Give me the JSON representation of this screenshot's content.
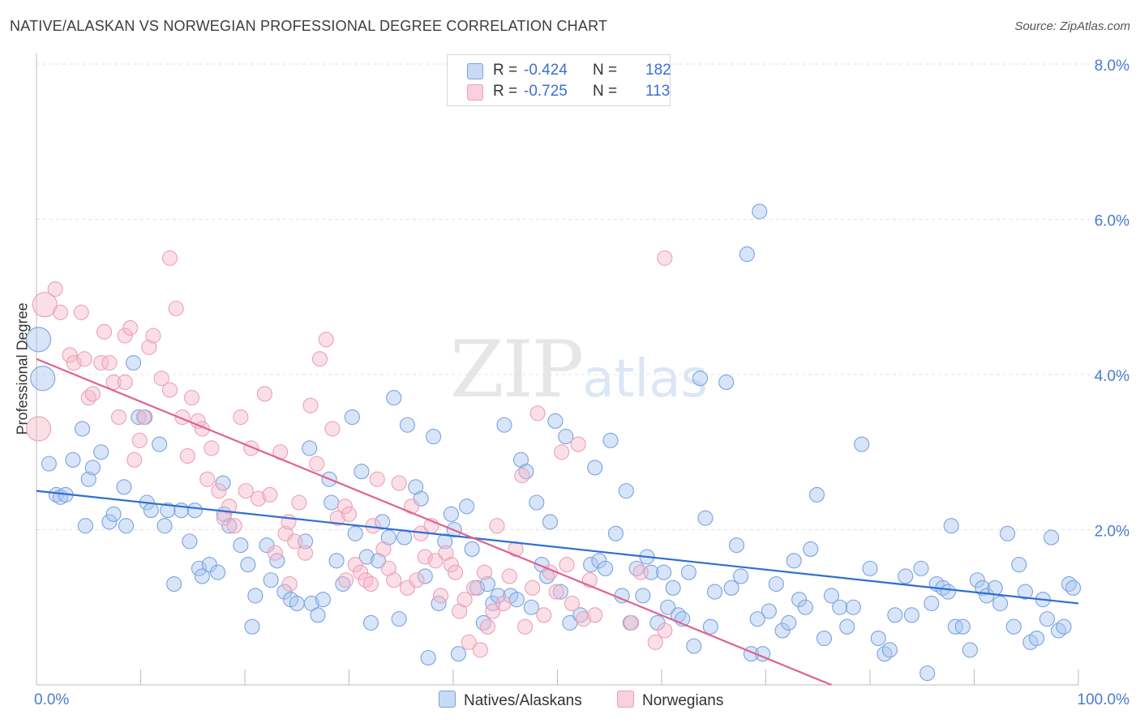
{
  "header": {
    "title": "NATIVE/ALASKAN VS NORWEGIAN PROFESSIONAL DEGREE CORRELATION CHART",
    "source": "Source: ZipAtlas.com"
  },
  "watermark": {
    "zip": "ZIP",
    "atlas": "atlas"
  },
  "legend": {
    "r_label": "R =",
    "n_label": "N =",
    "rows": [
      {
        "r": "-0.424",
        "n": "182",
        "color": "#a9c6f0"
      },
      {
        "r": "-0.725",
        "n": "113",
        "color": "#f6b8ca"
      }
    ]
  },
  "bottom_legend": [
    {
      "label": "Natives/Alaskans",
      "color": "#a9c6f0"
    },
    {
      "label": "Norwegians",
      "color": "#f6b8ca"
    }
  ],
  "chart_data": {
    "type": "scatter",
    "title": "NATIVE/ALASKAN VS NORWEGIAN PROFESSIONAL DEGREE CORRELATION CHART",
    "xlabel": "",
    "ylabel": "Professional Degree",
    "xlim": [
      0,
      100
    ],
    "ylim": [
      0,
      8.0
    ],
    "x_tick_labels": [
      "0.0%",
      "100.0%"
    ],
    "y_ticks": [
      2.0,
      4.0,
      6.0,
      8.0
    ],
    "y_tick_labels": [
      "2.0%",
      "4.0%",
      "6.0%",
      "8.0%"
    ],
    "grid": true,
    "colors": {
      "blue": "#4a7bd0",
      "blue_fill": "#a9c6f0",
      "blue_line": "#2f6fd0",
      "pink": "#e8739a",
      "pink_fill": "#f6b8ca",
      "pink_line": "#e0628f"
    },
    "series": [
      {
        "name": "Natives/Alaskans",
        "regression": {
          "x": [
            0,
            100
          ],
          "y": [
            2.5,
            1.05
          ]
        },
        "points": [
          [
            0.2,
            4.45
          ],
          [
            0.6,
            3.95
          ],
          [
            1.2,
            2.85
          ],
          [
            1.9,
            2.45
          ],
          [
            2.3,
            2.42
          ],
          [
            3.5,
            2.9
          ],
          [
            4.4,
            3.3
          ],
          [
            4.7,
            2.05
          ],
          [
            5.0,
            2.65
          ],
          [
            5.4,
            2.8
          ],
          [
            6.2,
            3.0
          ],
          [
            7.0,
            2.1
          ],
          [
            7.4,
            2.2
          ],
          [
            8.4,
            2.55
          ],
          [
            9.3,
            4.15
          ],
          [
            9.8,
            3.45
          ],
          [
            10.6,
            2.35
          ],
          [
            11.0,
            2.25
          ],
          [
            11.8,
            3.1
          ],
          [
            12.3,
            2.05
          ],
          [
            13.2,
            1.3
          ],
          [
            13.9,
            2.25
          ],
          [
            14.7,
            1.85
          ],
          [
            15.2,
            2.25
          ],
          [
            15.6,
            1.5
          ],
          [
            15.9,
            1.4
          ],
          [
            16.6,
            1.55
          ],
          [
            17.4,
            1.45
          ],
          [
            17.9,
            2.6
          ],
          [
            18.5,
            2.05
          ],
          [
            19.6,
            1.8
          ],
          [
            20.3,
            1.55
          ],
          [
            20.7,
            0.75
          ],
          [
            21.0,
            1.15
          ],
          [
            22.1,
            1.8
          ],
          [
            22.5,
            1.35
          ],
          [
            23.1,
            1.6
          ],
          [
            23.8,
            1.2
          ],
          [
            24.4,
            1.1
          ],
          [
            25.0,
            1.05
          ],
          [
            25.8,
            1.85
          ],
          [
            26.4,
            1.05
          ],
          [
            27.0,
            0.9
          ],
          [
            27.5,
            1.1
          ],
          [
            28.3,
            2.35
          ],
          [
            28.8,
            1.6
          ],
          [
            29.4,
            1.3
          ],
          [
            30.3,
            3.45
          ],
          [
            30.6,
            1.95
          ],
          [
            31.2,
            2.75
          ],
          [
            31.7,
            1.65
          ],
          [
            32.1,
            0.8
          ],
          [
            32.8,
            1.6
          ],
          [
            33.2,
            2.1
          ],
          [
            33.8,
            1.9
          ],
          [
            34.3,
            3.7
          ],
          [
            34.8,
            0.85
          ],
          [
            35.3,
            1.9
          ],
          [
            35.6,
            3.35
          ],
          [
            36.4,
            2.55
          ],
          [
            36.9,
            2.4
          ],
          [
            37.3,
            1.4
          ],
          [
            37.6,
            0.35
          ],
          [
            38.1,
            3.2
          ],
          [
            38.6,
            1.05
          ],
          [
            39.2,
            1.85
          ],
          [
            39.8,
            2.2
          ],
          [
            40.1,
            2.0
          ],
          [
            40.5,
            0.4
          ],
          [
            41.3,
            2.3
          ],
          [
            41.8,
            1.75
          ],
          [
            42.3,
            1.25
          ],
          [
            42.9,
            0.8
          ],
          [
            43.3,
            1.3
          ],
          [
            43.8,
            1.05
          ],
          [
            44.3,
            1.15
          ],
          [
            44.9,
            3.35
          ],
          [
            45.5,
            1.15
          ],
          [
            46.1,
            1.1
          ],
          [
            46.5,
            2.9
          ],
          [
            47.0,
            2.75
          ],
          [
            47.5,
            1.0
          ],
          [
            48.0,
            2.35
          ],
          [
            48.5,
            1.55
          ],
          [
            49.0,
            1.4
          ],
          [
            49.3,
            2.1
          ],
          [
            49.8,
            3.4
          ],
          [
            50.3,
            1.2
          ],
          [
            50.8,
            3.2
          ],
          [
            51.2,
            0.8
          ],
          [
            52.2,
            0.9
          ],
          [
            53.2,
            1.55
          ],
          [
            53.6,
            2.8
          ],
          [
            54.0,
            1.6
          ],
          [
            54.6,
            1.5
          ],
          [
            55.1,
            3.15
          ],
          [
            55.6,
            1.95
          ],
          [
            56.2,
            1.15
          ],
          [
            56.6,
            2.5
          ],
          [
            57.0,
            0.8
          ],
          [
            57.6,
            1.5
          ],
          [
            58.2,
            1.15
          ],
          [
            58.6,
            1.65
          ],
          [
            59.0,
            1.45
          ],
          [
            59.6,
            0.8
          ],
          [
            60.2,
            1.45
          ],
          [
            60.6,
            1.0
          ],
          [
            61.1,
            1.25
          ],
          [
            61.6,
            0.9
          ],
          [
            62.0,
            0.85
          ],
          [
            62.6,
            1.45
          ],
          [
            63.1,
            0.5
          ],
          [
            63.7,
            3.95
          ],
          [
            64.2,
            2.15
          ],
          [
            64.7,
            0.75
          ],
          [
            65.1,
            1.2
          ],
          [
            66.2,
            3.9
          ],
          [
            66.7,
            1.25
          ],
          [
            67.2,
            1.8
          ],
          [
            67.6,
            1.4
          ],
          [
            68.2,
            5.55
          ],
          [
            68.6,
            0.4
          ],
          [
            69.2,
            0.85
          ],
          [
            69.7,
            0.4
          ],
          [
            70.3,
            0.95
          ],
          [
            71.0,
            1.3
          ],
          [
            71.6,
            0.7
          ],
          [
            72.2,
            0.8
          ],
          [
            72.7,
            1.6
          ],
          [
            73.2,
            1.1
          ],
          [
            73.8,
            1.0
          ],
          [
            74.3,
            1.75
          ],
          [
            74.9,
            2.45
          ],
          [
            75.6,
            0.6
          ],
          [
            76.3,
            1.15
          ],
          [
            77.1,
            1.0
          ],
          [
            77.8,
            0.75
          ],
          [
            78.4,
            1.0
          ],
          [
            79.2,
            3.1
          ],
          [
            80.0,
            1.5
          ],
          [
            80.8,
            0.6
          ],
          [
            81.4,
            0.4
          ],
          [
            81.9,
            0.45
          ],
          [
            82.4,
            0.9
          ],
          [
            83.4,
            1.4
          ],
          [
            84.0,
            0.9
          ],
          [
            84.9,
            1.5
          ],
          [
            85.5,
            0.15
          ],
          [
            85.9,
            1.05
          ],
          [
            86.4,
            1.3
          ],
          [
            87.0,
            1.25
          ],
          [
            87.5,
            1.2
          ],
          [
            87.8,
            2.05
          ],
          [
            88.2,
            0.75
          ],
          [
            88.9,
            0.75
          ],
          [
            89.6,
            0.45
          ],
          [
            90.3,
            1.35
          ],
          [
            90.8,
            1.25
          ],
          [
            91.2,
            1.15
          ],
          [
            92.0,
            1.25
          ],
          [
            92.5,
            1.05
          ],
          [
            93.2,
            1.95
          ],
          [
            93.8,
            0.75
          ],
          [
            94.3,
            1.55
          ],
          [
            94.9,
            1.2
          ],
          [
            95.4,
            0.55
          ],
          [
            96.0,
            0.6
          ],
          [
            96.6,
            1.1
          ],
          [
            97.0,
            0.85
          ],
          [
            97.4,
            1.9
          ],
          [
            98.1,
            0.7
          ],
          [
            98.6,
            0.75
          ],
          [
            99.1,
            1.3
          ],
          [
            99.5,
            1.25
          ],
          [
            2.8,
            2.45
          ],
          [
            8.6,
            2.05
          ],
          [
            10.4,
            3.45
          ],
          [
            12.6,
            2.25
          ],
          [
            18.0,
            2.2
          ],
          [
            26.2,
            3.05
          ],
          [
            28.1,
            2.65
          ],
          [
            69.4,
            6.1
          ]
        ]
      },
      {
        "name": "Norwegians",
        "regression": {
          "x": [
            0,
            76.3
          ],
          "y": [
            4.2,
            0.0
          ]
        },
        "points": [
          [
            0.2,
            3.3
          ],
          [
            0.8,
            4.9
          ],
          [
            1.8,
            5.1
          ],
          [
            2.3,
            4.8
          ],
          [
            3.2,
            4.25
          ],
          [
            3.6,
            4.15
          ],
          [
            4.3,
            4.8
          ],
          [
            4.6,
            4.2
          ],
          [
            5.0,
            3.7
          ],
          [
            5.4,
            3.75
          ],
          [
            6.2,
            4.15
          ],
          [
            6.5,
            4.55
          ],
          [
            7.0,
            4.15
          ],
          [
            7.4,
            3.9
          ],
          [
            7.9,
            3.45
          ],
          [
            8.5,
            4.5
          ],
          [
            9.0,
            4.6
          ],
          [
            9.4,
            2.9
          ],
          [
            9.9,
            3.15
          ],
          [
            10.3,
            3.45
          ],
          [
            10.8,
            4.35
          ],
          [
            11.2,
            4.5
          ],
          [
            12.0,
            3.95
          ],
          [
            12.8,
            3.8
          ],
          [
            13.4,
            4.85
          ],
          [
            14.0,
            3.45
          ],
          [
            14.5,
            2.95
          ],
          [
            14.9,
            3.7
          ],
          [
            15.5,
            3.4
          ],
          [
            15.9,
            3.3
          ],
          [
            16.4,
            2.65
          ],
          [
            16.8,
            3.05
          ],
          [
            17.5,
            2.5
          ],
          [
            18.0,
            2.15
          ],
          [
            18.5,
            2.3
          ],
          [
            19.0,
            2.05
          ],
          [
            19.6,
            3.45
          ],
          [
            20.1,
            2.5
          ],
          [
            20.6,
            3.05
          ],
          [
            21.3,
            2.4
          ],
          [
            21.9,
            3.75
          ],
          [
            22.4,
            2.45
          ],
          [
            22.9,
            1.7
          ],
          [
            23.4,
            3.0
          ],
          [
            23.9,
            1.95
          ],
          [
            24.2,
            2.1
          ],
          [
            24.8,
            1.85
          ],
          [
            25.2,
            2.35
          ],
          [
            25.8,
            1.7
          ],
          [
            26.3,
            3.6
          ],
          [
            26.9,
            2.85
          ],
          [
            27.2,
            4.2
          ],
          [
            27.8,
            4.45
          ],
          [
            28.4,
            3.3
          ],
          [
            28.9,
            2.15
          ],
          [
            29.6,
            2.3
          ],
          [
            30.0,
            2.2
          ],
          [
            30.6,
            1.55
          ],
          [
            31.1,
            1.45
          ],
          [
            31.6,
            1.35
          ],
          [
            32.3,
            2.05
          ],
          [
            32.7,
            2.65
          ],
          [
            33.3,
            1.75
          ],
          [
            33.8,
            1.5
          ],
          [
            34.3,
            1.35
          ],
          [
            34.8,
            2.6
          ],
          [
            35.6,
            1.25
          ],
          [
            36.0,
            2.3
          ],
          [
            36.5,
            1.35
          ],
          [
            36.9,
            1.95
          ],
          [
            37.3,
            1.65
          ],
          [
            37.9,
            2.05
          ],
          [
            38.3,
            1.6
          ],
          [
            38.8,
            1.15
          ],
          [
            39.3,
            1.7
          ],
          [
            39.8,
            1.55
          ],
          [
            40.2,
            1.45
          ],
          [
            40.6,
            0.95
          ],
          [
            41.1,
            1.1
          ],
          [
            41.5,
            0.55
          ],
          [
            42.0,
            1.25
          ],
          [
            42.6,
            0.45
          ],
          [
            43.0,
            1.45
          ],
          [
            43.3,
            0.75
          ],
          [
            43.8,
            0.95
          ],
          [
            44.2,
            2.05
          ],
          [
            44.8,
            1.05
          ],
          [
            45.4,
            1.4
          ],
          [
            46.0,
            1.75
          ],
          [
            46.6,
            2.7
          ],
          [
            46.9,
            0.75
          ],
          [
            47.6,
            1.25
          ],
          [
            48.1,
            3.5
          ],
          [
            48.7,
            0.9
          ],
          [
            49.3,
            1.45
          ],
          [
            49.9,
            1.2
          ],
          [
            50.4,
            3.0
          ],
          [
            50.9,
            1.55
          ],
          [
            51.4,
            1.05
          ],
          [
            52.0,
            3.1
          ],
          [
            52.5,
            0.85
          ],
          [
            53.1,
            1.35
          ],
          [
            53.6,
            0.9
          ],
          [
            57.1,
            0.8
          ],
          [
            58.0,
            1.45
          ],
          [
            59.4,
            0.55
          ],
          [
            60.3,
            0.7
          ],
          [
            29.7,
            1.35
          ],
          [
            32.1,
            1.3
          ],
          [
            24.3,
            1.3
          ],
          [
            8.5,
            3.9
          ],
          [
            12.8,
            5.5
          ],
          [
            60.3,
            5.5
          ]
        ]
      }
    ]
  }
}
